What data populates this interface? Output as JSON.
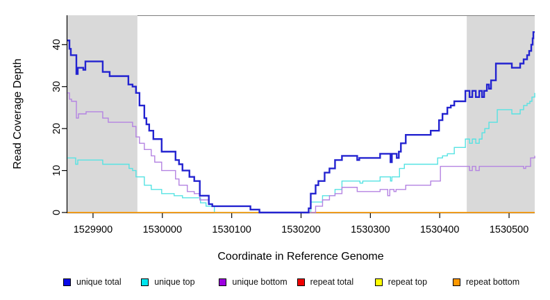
{
  "figure": {
    "background": "#ffffff",
    "plot_border_color": "#7d7d7d",
    "axis_color": "#000000"
  },
  "axes": {
    "x_title": "Coordinate in Reference Genome",
    "y_title": "Read Coverage Depth",
    "x_tick_labels": [
      "1529900",
      "1530000",
      "1530100",
      "1530200",
      "1530300",
      "1530400",
      "1530500"
    ],
    "y_tick_labels": [
      "0",
      "10",
      "20",
      "30",
      "40"
    ]
  },
  "legend": {
    "items": [
      {
        "label": "unique total",
        "color": "#0a0ae8"
      },
      {
        "label": "unique top",
        "color": "#00e5ee"
      },
      {
        "label": "unique bottom",
        "color": "#9d00e0"
      },
      {
        "label": "repeat total",
        "color": "#f00000"
      },
      {
        "label": "repeat top",
        "color": "#ffff00"
      },
      {
        "label": "repeat bottom",
        "color": "#ff9800"
      }
    ]
  },
  "chart_data": {
    "type": "line",
    "subtype": "step-after-coverage",
    "title": "",
    "xlabel": "Coordinate in Reference Genome",
    "ylabel": "Read Coverage Depth",
    "xlim": [
      1529863,
      1530537
    ],
    "ylim": [
      0,
      47
    ],
    "x_ticks": [
      1529900,
      1530000,
      1530100,
      1530200,
      1530300,
      1530400,
      1530500
    ],
    "y_ticks": [
      0,
      10,
      20,
      30,
      40
    ],
    "grid": false,
    "legend_position": "bottom-horizontal",
    "shaded_regions": [
      {
        "from": 1529863,
        "to": 1529964,
        "color": "#d9d9d9"
      },
      {
        "from": 1530439,
        "to": 1530537,
        "color": "#d9d9d9"
      }
    ],
    "series": [
      {
        "name": "repeat total",
        "line_color": "#e00000",
        "width": 1.1,
        "points": [
          [
            1529863,
            0
          ],
          [
            1530537,
            0
          ]
        ]
      },
      {
        "name": "repeat top",
        "line_color": "#ffeb00",
        "width": 1.1,
        "points": [
          [
            1529863,
            0
          ],
          [
            1530537,
            0
          ]
        ]
      },
      {
        "name": "unique top",
        "line_color": "#55e3e3",
        "width": 1.4,
        "points": [
          [
            1529863,
            13
          ],
          [
            1529875,
            11.5
          ],
          [
            1529878,
            12.5
          ],
          [
            1529914,
            11.5
          ],
          [
            1529952,
            10.5
          ],
          [
            1529957,
            10
          ],
          [
            1529962,
            8.5
          ],
          [
            1529974,
            6.5
          ],
          [
            1529984,
            5.5
          ],
          [
            1529999,
            4.5
          ],
          [
            1530017,
            4
          ],
          [
            1530029,
            3.5
          ],
          [
            1530055,
            2.3
          ],
          [
            1530063,
            1.5
          ],
          [
            1530075,
            0
          ],
          [
            1530214,
            2.5
          ],
          [
            1530231,
            4
          ],
          [
            1530249,
            5.5
          ],
          [
            1530259,
            7.5
          ],
          [
            1530285,
            7
          ],
          [
            1530289,
            7.5
          ],
          [
            1530314,
            8.5
          ],
          [
            1530329,
            7.5
          ],
          [
            1530331,
            8.5
          ],
          [
            1530342,
            10.5
          ],
          [
            1530349,
            11.5
          ],
          [
            1530397,
            13
          ],
          [
            1530404,
            13.5
          ],
          [
            1530411,
            14
          ],
          [
            1530421,
            15.5
          ],
          [
            1530437,
            17.5
          ],
          [
            1530443,
            16.5
          ],
          [
            1530447,
            17.5
          ],
          [
            1530452,
            16.5
          ],
          [
            1530457,
            17.5
          ],
          [
            1530461,
            19
          ],
          [
            1530465,
            20
          ],
          [
            1530471,
            21.5
          ],
          [
            1530483,
            24.5
          ],
          [
            1530504,
            23.5
          ],
          [
            1530516,
            24.5
          ],
          [
            1530521,
            25.5
          ],
          [
            1530526,
            26
          ],
          [
            1530530,
            26.5
          ],
          [
            1530533,
            27.5
          ],
          [
            1530537,
            28.5
          ]
        ]
      },
      {
        "name": "repeat bottom",
        "line_color": "#ffa010",
        "width": 1.7,
        "points": [
          [
            1529863,
            0
          ],
          [
            1530537,
            0
          ]
        ]
      },
      {
        "name": "unique bottom",
        "line_color": "#b483e2",
        "width": 1.4,
        "points": [
          [
            1529863,
            28.5
          ],
          [
            1529866,
            27
          ],
          [
            1529869,
            26.5
          ],
          [
            1529876,
            22.5
          ],
          [
            1529879,
            23.5
          ],
          [
            1529890,
            24
          ],
          [
            1529914,
            22.5
          ],
          [
            1529922,
            21.5
          ],
          [
            1529957,
            20.5
          ],
          [
            1529962,
            18
          ],
          [
            1529967,
            16.5
          ],
          [
            1529974,
            15
          ],
          [
            1529984,
            13.5
          ],
          [
            1529989,
            12
          ],
          [
            1529999,
            10
          ],
          [
            1530019,
            8
          ],
          [
            1530024,
            6.5
          ],
          [
            1530036,
            5
          ],
          [
            1530046,
            4.5
          ],
          [
            1530054,
            3
          ],
          [
            1530067,
            2
          ],
          [
            1530072,
            1.5
          ],
          [
            1530127,
            0.7
          ],
          [
            1530140,
            0
          ],
          [
            1530221,
            1.5
          ],
          [
            1530231,
            3
          ],
          [
            1530241,
            4
          ],
          [
            1530249,
            4.5
          ],
          [
            1530259,
            6
          ],
          [
            1530281,
            5
          ],
          [
            1530314,
            5.5
          ],
          [
            1530325,
            4
          ],
          [
            1530328,
            5.5
          ],
          [
            1530334,
            5
          ],
          [
            1530337,
            5.5
          ],
          [
            1530351,
            6.5
          ],
          [
            1530387,
            7.5
          ],
          [
            1530401,
            11
          ],
          [
            1530443,
            10
          ],
          [
            1530447,
            11
          ],
          [
            1530452,
            10
          ],
          [
            1530457,
            11
          ],
          [
            1530521,
            10.5
          ],
          [
            1530524,
            11
          ],
          [
            1530531,
            13
          ],
          [
            1530537,
            13.5
          ]
        ]
      },
      {
        "name": "unique total",
        "line_color": "#2323d0",
        "width": 2.4,
        "points": [
          [
            1529863,
            41
          ],
          [
            1529866,
            39
          ],
          [
            1529868,
            37.5
          ],
          [
            1529876,
            33
          ],
          [
            1529878,
            34.5
          ],
          [
            1529886,
            34
          ],
          [
            1529889,
            36
          ],
          [
            1529914,
            33.5
          ],
          [
            1529924,
            32.5
          ],
          [
            1529951,
            30.5
          ],
          [
            1529957,
            30
          ],
          [
            1529962,
            28.5
          ],
          [
            1529967,
            25.5
          ],
          [
            1529974,
            22.5
          ],
          [
            1529977,
            21
          ],
          [
            1529981,
            19.5
          ],
          [
            1529987,
            17.5
          ],
          [
            1529999,
            14.5
          ],
          [
            1530019,
            12.5
          ],
          [
            1530024,
            11.5
          ],
          [
            1530029,
            10
          ],
          [
            1530039,
            8.5
          ],
          [
            1530046,
            7.5
          ],
          [
            1530054,
            4
          ],
          [
            1530067,
            2
          ],
          [
            1530072,
            1.5
          ],
          [
            1530127,
            0.7
          ],
          [
            1530140,
            0
          ],
          [
            1530211,
            1
          ],
          [
            1530214,
            4.5
          ],
          [
            1530221,
            6.5
          ],
          [
            1530225,
            7.5
          ],
          [
            1530234,
            9.5
          ],
          [
            1530241,
            10.5
          ],
          [
            1530249,
            12.5
          ],
          [
            1530259,
            13.5
          ],
          [
            1530281,
            12.5
          ],
          [
            1530284,
            13
          ],
          [
            1530314,
            14
          ],
          [
            1530329,
            12
          ],
          [
            1530331,
            14
          ],
          [
            1530338,
            13
          ],
          [
            1530341,
            14.5
          ],
          [
            1530344,
            16.5
          ],
          [
            1530351,
            18.5
          ],
          [
            1530387,
            19.5
          ],
          [
            1530399,
            22
          ],
          [
            1530404,
            23.5
          ],
          [
            1530411,
            25
          ],
          [
            1530416,
            25.5
          ],
          [
            1530421,
            26.5
          ],
          [
            1530437,
            29
          ],
          [
            1530443,
            27.5
          ],
          [
            1530447,
            29
          ],
          [
            1530452,
            27.5
          ],
          [
            1530457,
            29
          ],
          [
            1530461,
            27.5
          ],
          [
            1530464,
            29
          ],
          [
            1530468,
            30.5
          ],
          [
            1530471,
            29.5
          ],
          [
            1530474,
            31.5
          ],
          [
            1530481,
            35.5
          ],
          [
            1530504,
            34.5
          ],
          [
            1530516,
            35.5
          ],
          [
            1530521,
            36.5
          ],
          [
            1530526,
            37.5
          ],
          [
            1530529,
            38.5
          ],
          [
            1530532,
            40
          ],
          [
            1530534,
            41.5
          ],
          [
            1530535,
            43
          ],
          [
            1530537,
            43
          ]
        ]
      }
    ]
  }
}
